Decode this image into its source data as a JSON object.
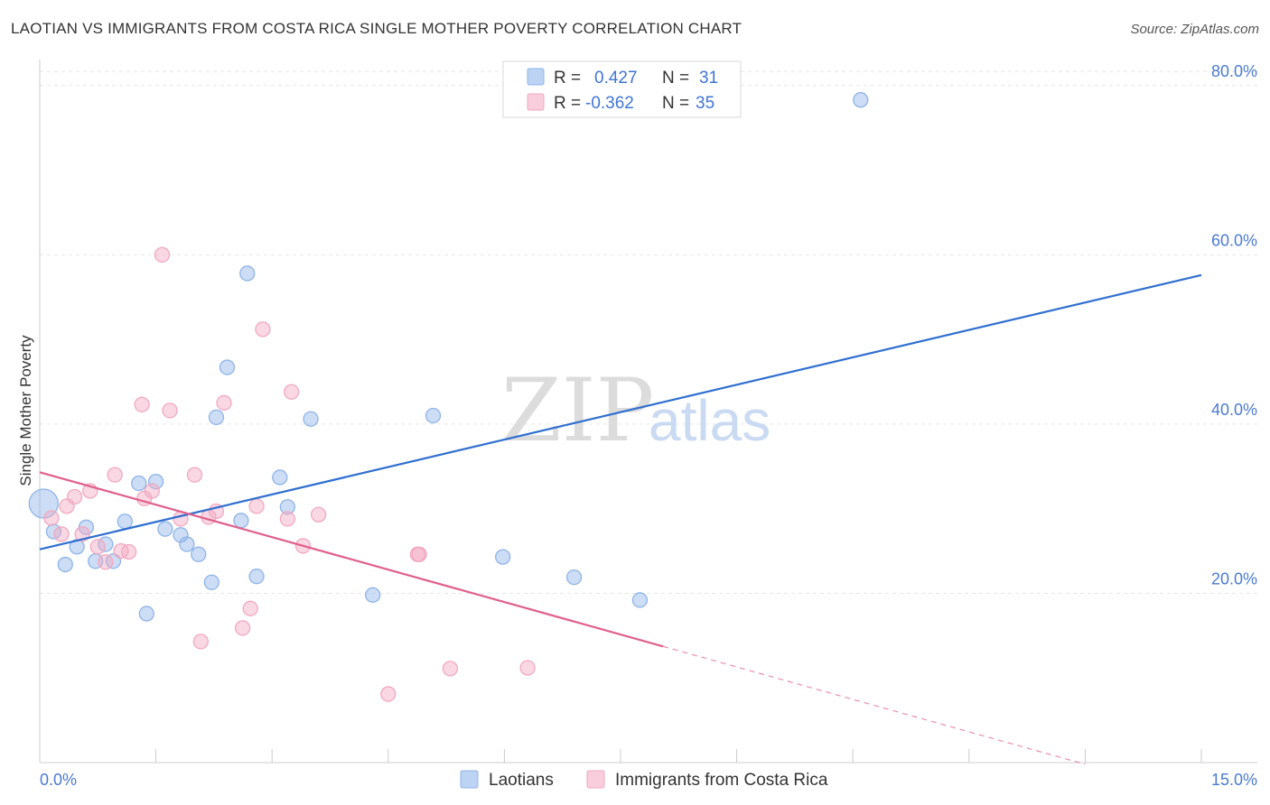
{
  "title": "LAOTIAN VS IMMIGRANTS FROM COSTA RICA SINGLE MOTHER POVERTY CORRELATION CHART",
  "source": "Source: ZipAtlas.com",
  "watermark": {
    "zip": "ZIP",
    "atlas": "atlas"
  },
  "chart_data": {
    "type": "scatter",
    "ylabel": "Single Mother Poverty",
    "xlim": [
      0,
      15
    ],
    "ylim": [
      0,
      82
    ],
    "x_tick_labels": [
      "0.0%",
      "15.0%"
    ],
    "y_ticks": [
      20,
      40,
      60,
      80
    ],
    "y_tick_labels": [
      "20.0%",
      "40.0%",
      "60.0%",
      "80.0%"
    ],
    "grid": true,
    "legend": [
      {
        "r_label": "R =",
        "r_value": "0.427",
        "n_label": "N =",
        "n_value": "31"
      },
      {
        "r_label": "R =",
        "r_value": "-0.362",
        "n_label": "N =",
        "n_value": "35"
      }
    ],
    "series": [
      {
        "name": "Laotians",
        "color": "#8fb4e8",
        "line_color": "#2f6fd0",
        "trend": {
          "x": [
            0,
            15
          ],
          "y": [
            25.2,
            57.6
          ],
          "solid_until": 15
        },
        "points": [
          {
            "x": 0.05,
            "y": 30.6,
            "big": true
          },
          {
            "x": 0.18,
            "y": 27.3
          },
          {
            "x": 0.33,
            "y": 23.4
          },
          {
            "x": 0.48,
            "y": 25.5
          },
          {
            "x": 0.6,
            "y": 27.8
          },
          {
            "x": 0.72,
            "y": 23.8
          },
          {
            "x": 0.85,
            "y": 25.8
          },
          {
            "x": 0.95,
            "y": 23.8
          },
          {
            "x": 1.1,
            "y": 28.5
          },
          {
            "x": 1.28,
            "y": 33.0
          },
          {
            "x": 1.38,
            "y": 17.6
          },
          {
            "x": 1.5,
            "y": 33.2
          },
          {
            "x": 1.62,
            "y": 27.6
          },
          {
            "x": 1.82,
            "y": 26.9
          },
          {
            "x": 1.9,
            "y": 25.8
          },
          {
            "x": 2.05,
            "y": 24.6
          },
          {
            "x": 2.22,
            "y": 21.3
          },
          {
            "x": 2.28,
            "y": 40.8
          },
          {
            "x": 2.42,
            "y": 46.7
          },
          {
            "x": 2.6,
            "y": 28.6
          },
          {
            "x": 2.68,
            "y": 57.8
          },
          {
            "x": 2.8,
            "y": 22.0
          },
          {
            "x": 3.1,
            "y": 33.7
          },
          {
            "x": 3.2,
            "y": 30.2
          },
          {
            "x": 3.5,
            "y": 40.6
          },
          {
            "x": 4.3,
            "y": 19.8
          },
          {
            "x": 5.08,
            "y": 41.0
          },
          {
            "x": 5.98,
            "y": 24.3
          },
          {
            "x": 6.9,
            "y": 21.9
          },
          {
            "x": 7.75,
            "y": 19.2
          },
          {
            "x": 10.6,
            "y": 78.3
          }
        ]
      },
      {
        "name": "Immigrants from Costa Rica",
        "color": "#f2a8c0",
        "line_color": "#e0608c",
        "trend": {
          "x": [
            0,
            13.5
          ],
          "y": [
            34.3,
            -0.2
          ],
          "solid_until": 8.05
        },
        "points": [
          {
            "x": 0.15,
            "y": 28.9
          },
          {
            "x": 0.28,
            "y": 27.0
          },
          {
            "x": 0.35,
            "y": 30.3
          },
          {
            "x": 0.45,
            "y": 31.4
          },
          {
            "x": 0.55,
            "y": 27.0
          },
          {
            "x": 0.65,
            "y": 32.1
          },
          {
            "x": 0.75,
            "y": 25.5
          },
          {
            "x": 0.85,
            "y": 23.7
          },
          {
            "x": 0.97,
            "y": 34.0
          },
          {
            "x": 1.05,
            "y": 25.0
          },
          {
            "x": 1.15,
            "y": 24.9
          },
          {
            "x": 1.32,
            "y": 42.3
          },
          {
            "x": 1.35,
            "y": 31.2
          },
          {
            "x": 1.45,
            "y": 32.1
          },
          {
            "x": 1.58,
            "y": 60.0
          },
          {
            "x": 1.68,
            "y": 41.6
          },
          {
            "x": 1.82,
            "y": 28.8
          },
          {
            "x": 2.0,
            "y": 34.0
          },
          {
            "x": 2.08,
            "y": 14.3
          },
          {
            "x": 2.18,
            "y": 29.0
          },
          {
            "x": 2.28,
            "y": 29.7
          },
          {
            "x": 2.38,
            "y": 42.5
          },
          {
            "x": 2.62,
            "y": 15.9
          },
          {
            "x": 2.72,
            "y": 18.2
          },
          {
            "x": 2.8,
            "y": 30.3
          },
          {
            "x": 2.88,
            "y": 51.2
          },
          {
            "x": 3.2,
            "y": 28.8
          },
          {
            "x": 3.25,
            "y": 43.8
          },
          {
            "x": 3.4,
            "y": 25.6
          },
          {
            "x": 3.6,
            "y": 29.3
          },
          {
            "x": 4.5,
            "y": 8.1
          },
          {
            "x": 4.88,
            "y": 24.6
          },
          {
            "x": 5.3,
            "y": 11.1
          },
          {
            "x": 6.3,
            "y": 11.2
          },
          {
            "x": 4.9,
            "y": 24.6
          }
        ]
      }
    ]
  }
}
